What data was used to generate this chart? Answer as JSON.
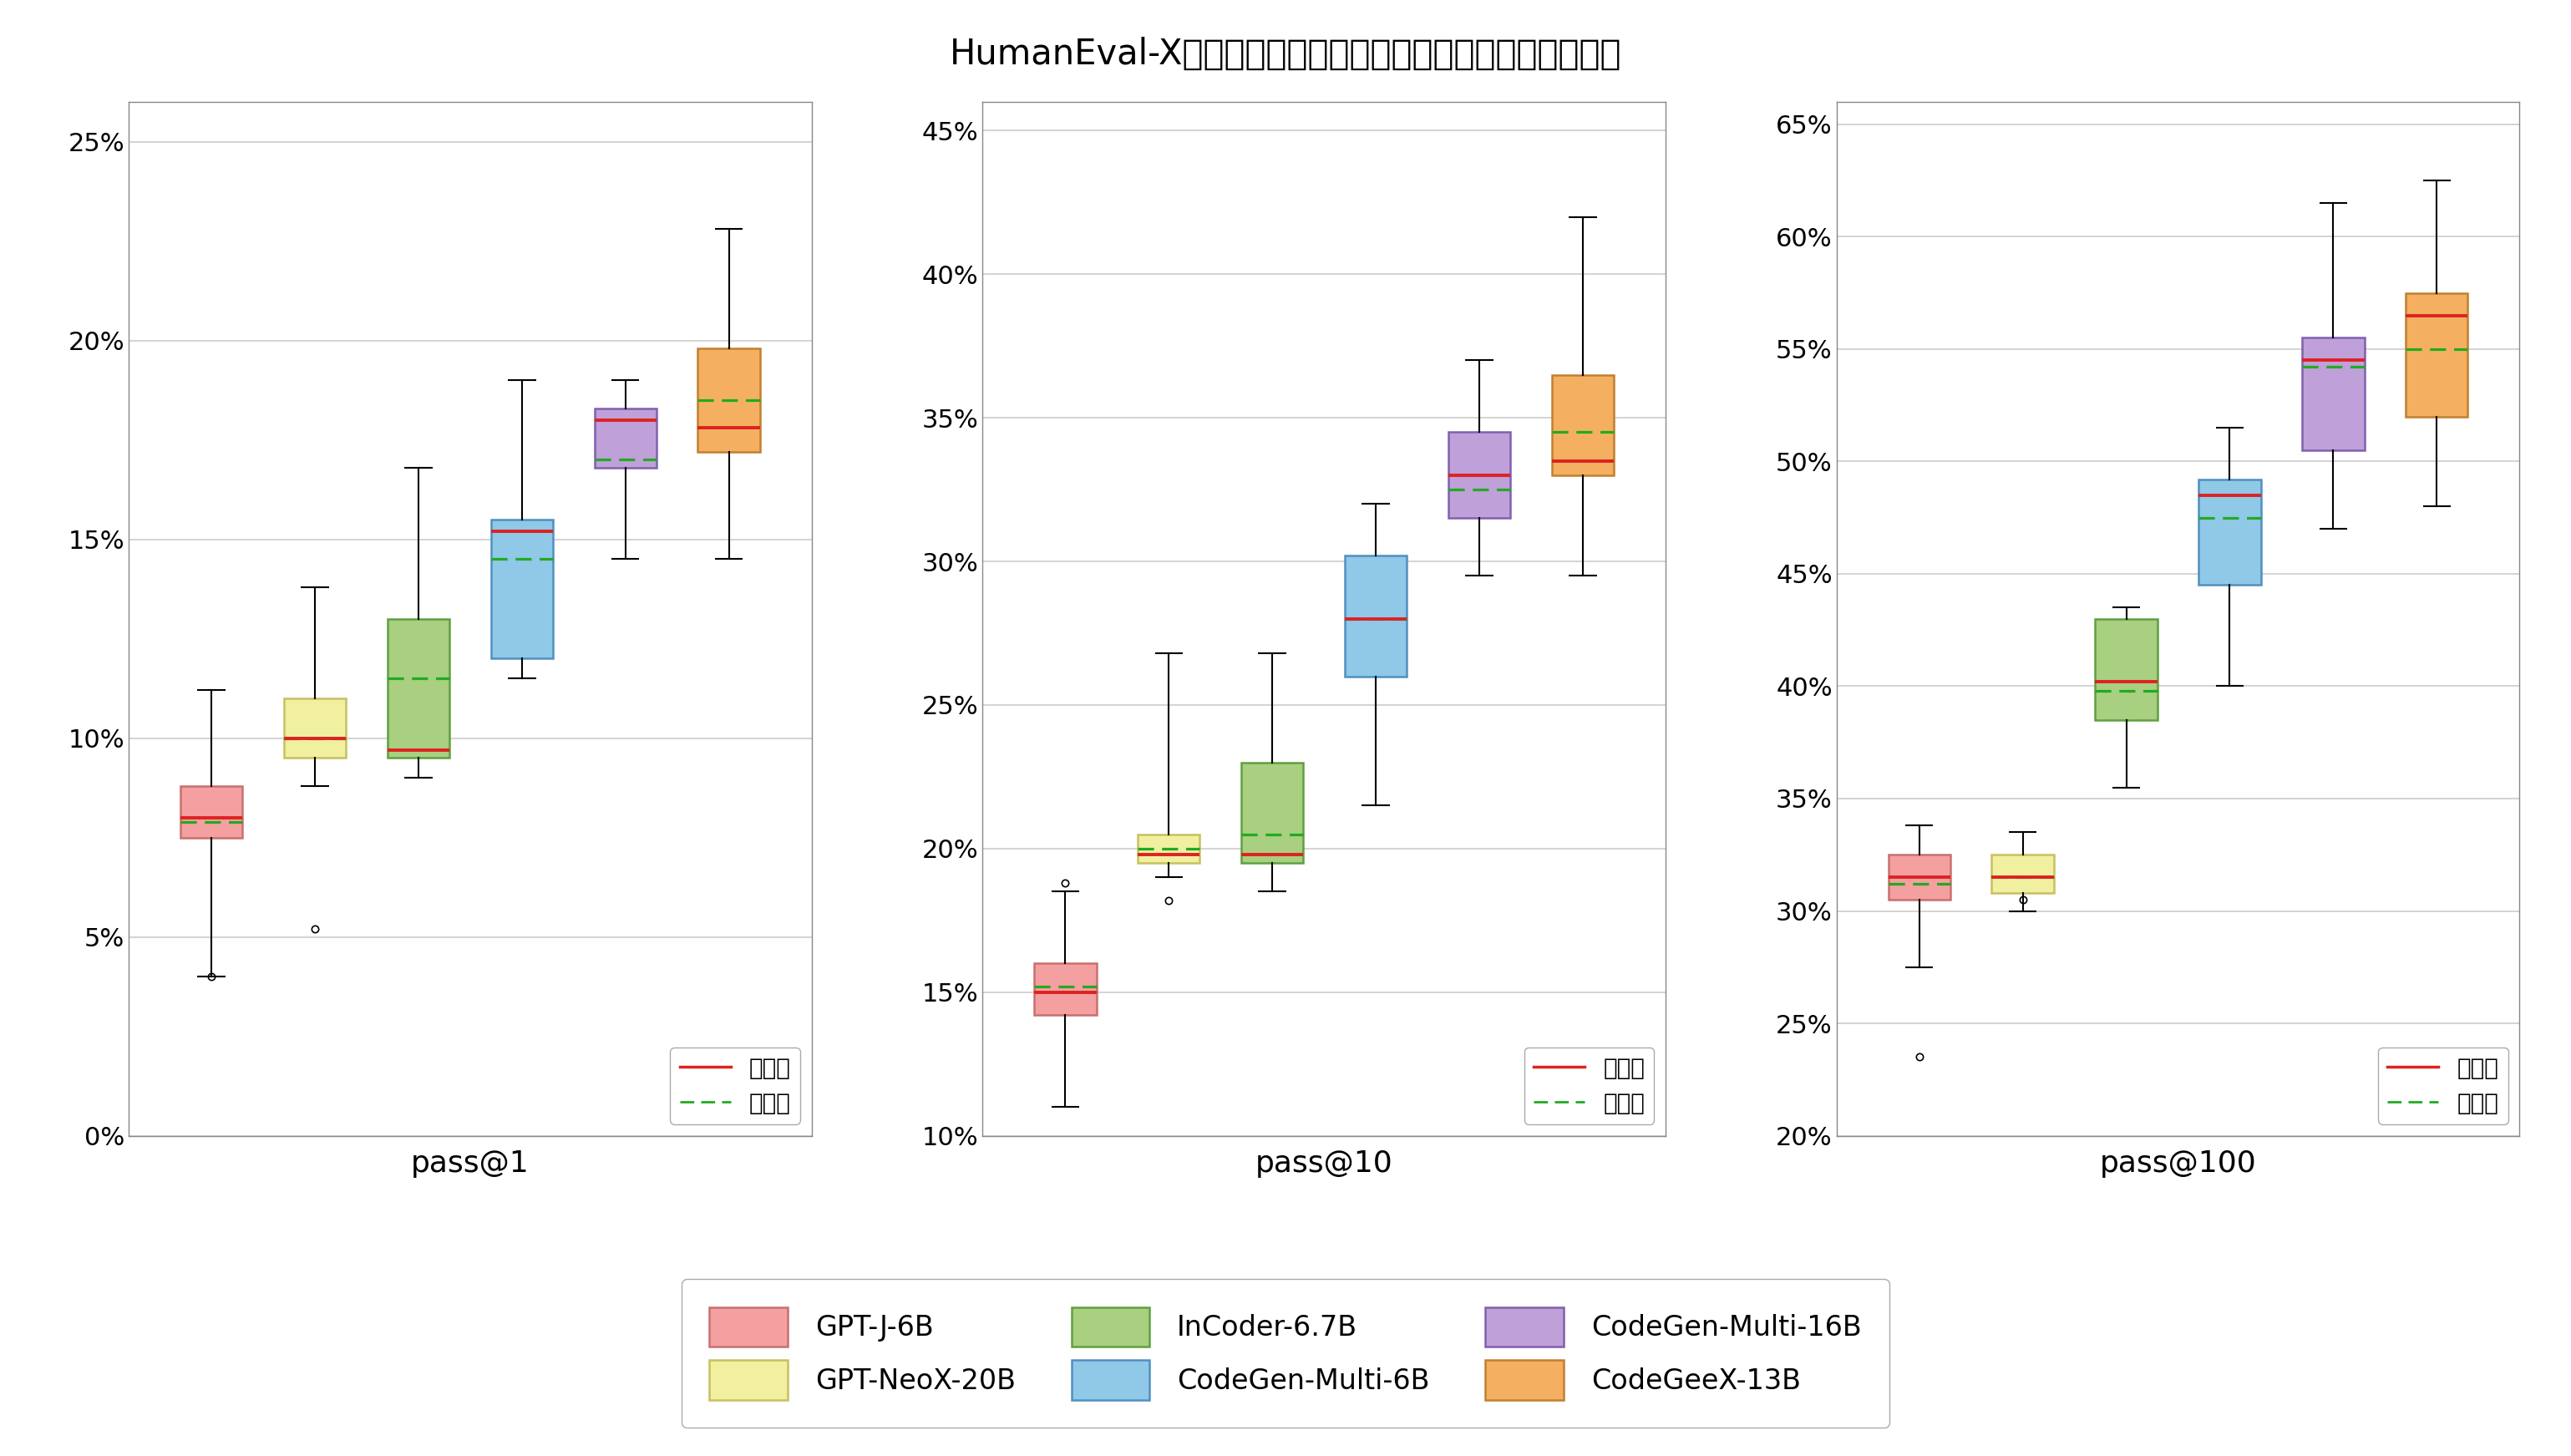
{
  "title": "HumanEval-X基准上的多语言代码生成性能（五种编程语言）",
  "subplots": [
    "pass@1",
    "pass@10",
    "pass@100"
  ],
  "models": [
    "GPT-J-6B",
    "GPT-NeoX-20B",
    "InCoder-6.7B",
    "CodeGen-Multi-6B",
    "CodeGen-Multi-16B",
    "CodeGeeX-13B"
  ],
  "colors": {
    "GPT-J-6B": "#F4A0A0",
    "GPT-NeoX-20B": "#F0F0A0",
    "InCoder-6.7B": "#A8D080",
    "CodeGen-Multi-6B": "#90C8E8",
    "CodeGen-Multi-16B": "#C0A0D8",
    "CodeGeeX-13B": "#F4B060"
  },
  "edge_colors": {
    "GPT-J-6B": "#C87070",
    "GPT-NeoX-20B": "#C8C060",
    "InCoder-6.7B": "#60A040",
    "CodeGen-Multi-6B": "#5090C0",
    "CodeGen-Multi-16B": "#8060B0",
    "CodeGeeX-13B": "#C08030"
  },
  "pass1": {
    "GPT-J-6B": {
      "whislo": 4.0,
      "q1": 7.5,
      "median": 8.0,
      "mean": 7.9,
      "q3": 8.8,
      "whishi": 11.2,
      "fliers": [
        4.0
      ]
    },
    "GPT-NeoX-20B": {
      "whislo": 8.8,
      "q1": 9.5,
      "median": 10.0,
      "mean": 10.0,
      "q3": 11.0,
      "whishi": 13.8,
      "fliers": [
        5.2
      ]
    },
    "InCoder-6.7B": {
      "whislo": 9.0,
      "q1": 9.5,
      "median": 9.7,
      "mean": 11.5,
      "q3": 13.0,
      "whishi": 16.8,
      "fliers": []
    },
    "CodeGen-Multi-6B": {
      "whislo": 11.5,
      "q1": 12.0,
      "median": 15.2,
      "mean": 14.5,
      "q3": 15.5,
      "whishi": 19.0,
      "fliers": []
    },
    "CodeGen-Multi-16B": {
      "whislo": 14.5,
      "q1": 16.8,
      "median": 18.0,
      "mean": 17.0,
      "q3": 18.3,
      "whishi": 19.0,
      "fliers": []
    },
    "CodeGeeX-13B": {
      "whislo": 14.5,
      "q1": 17.2,
      "median": 17.8,
      "mean": 18.5,
      "q3": 19.8,
      "whishi": 22.8,
      "fliers": []
    }
  },
  "pass10": {
    "GPT-J-6B": {
      "whislo": 11.0,
      "q1": 14.2,
      "median": 15.0,
      "mean": 15.2,
      "q3": 16.0,
      "whishi": 18.5,
      "fliers": [
        18.8
      ]
    },
    "GPT-NeoX-20B": {
      "whislo": 19.0,
      "q1": 19.5,
      "median": 19.8,
      "mean": 20.0,
      "q3": 20.5,
      "whishi": 26.8,
      "fliers": [
        18.2
      ]
    },
    "InCoder-6.7B": {
      "whislo": 18.5,
      "q1": 19.5,
      "median": 19.8,
      "mean": 20.5,
      "q3": 23.0,
      "whishi": 26.8,
      "fliers": []
    },
    "CodeGen-Multi-6B": {
      "whislo": 21.5,
      "q1": 26.0,
      "median": 28.0,
      "mean": 28.0,
      "q3": 30.2,
      "whishi": 32.0,
      "fliers": []
    },
    "CodeGen-Multi-16B": {
      "whislo": 29.5,
      "q1": 31.5,
      "median": 33.0,
      "mean": 32.5,
      "q3": 34.5,
      "whishi": 37.0,
      "fliers": []
    },
    "CodeGeeX-13B": {
      "whislo": 29.5,
      "q1": 33.0,
      "median": 33.5,
      "mean": 34.5,
      "q3": 36.5,
      "whishi": 42.0,
      "fliers": []
    }
  },
  "pass100": {
    "GPT-J-6B": {
      "whislo": 27.5,
      "q1": 30.5,
      "median": 31.5,
      "mean": 31.2,
      "q3": 32.5,
      "whishi": 33.8,
      "fliers": [
        23.5
      ]
    },
    "GPT-NeoX-20B": {
      "whislo": 30.0,
      "q1": 30.8,
      "median": 31.5,
      "mean": 31.5,
      "q3": 32.5,
      "whishi": 33.5,
      "fliers": [
        30.5
      ]
    },
    "InCoder-6.7B": {
      "whislo": 35.5,
      "q1": 38.5,
      "median": 40.2,
      "mean": 39.8,
      "q3": 43.0,
      "whishi": 43.5,
      "fliers": []
    },
    "CodeGen-Multi-6B": {
      "whislo": 40.0,
      "q1": 44.5,
      "median": 48.5,
      "mean": 47.5,
      "q3": 49.2,
      "whishi": 51.5,
      "fliers": []
    },
    "CodeGen-Multi-16B": {
      "whislo": 47.0,
      "q1": 50.5,
      "median": 54.5,
      "mean": 54.2,
      "q3": 55.5,
      "whishi": 61.5,
      "fliers": []
    },
    "CodeGeeX-13B": {
      "whislo": 48.0,
      "q1": 52.0,
      "median": 56.5,
      "mean": 55.0,
      "q3": 57.5,
      "whishi": 62.5,
      "fliers": []
    }
  },
  "ylims": {
    "pass@1": [
      0.0,
      0.26
    ],
    "pass@10": [
      0.1,
      0.46
    ],
    "pass@100": [
      0.2,
      0.66
    ]
  },
  "yticks": {
    "pass@1": [
      0.0,
      0.05,
      0.1,
      0.15,
      0.2,
      0.25
    ],
    "pass@10": [
      0.1,
      0.15,
      0.2,
      0.25,
      0.3,
      0.35,
      0.4,
      0.45
    ],
    "pass@100": [
      0.2,
      0.25,
      0.3,
      0.35,
      0.4,
      0.45,
      0.5,
      0.55,
      0.6,
      0.65
    ]
  },
  "background_color": "#FFFFFF",
  "grid_color": "#CCCCCC",
  "median_color": "#DD2222",
  "mean_color": "#22AA22",
  "legend_median": "中位数",
  "legend_mean": "平均値"
}
